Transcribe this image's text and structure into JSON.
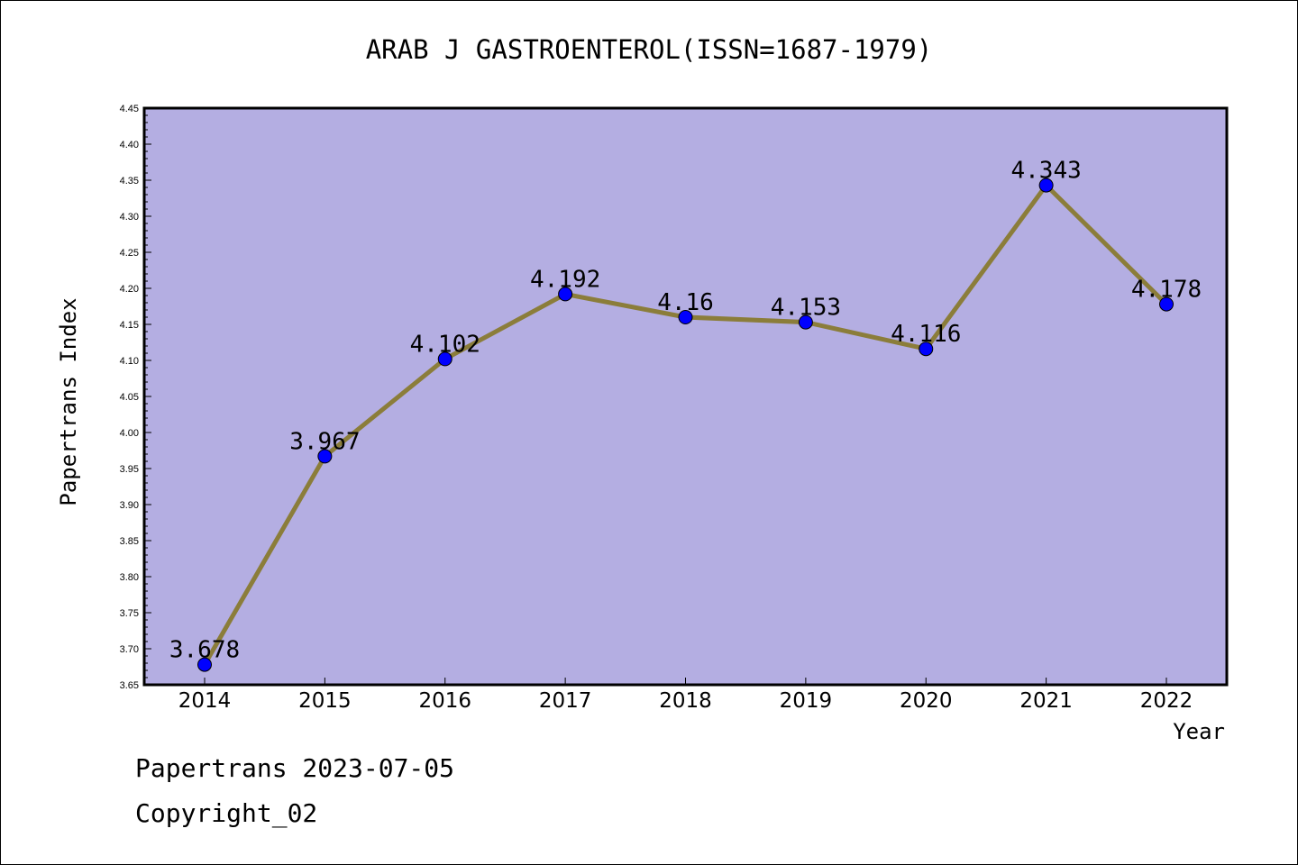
{
  "chart_data": {
    "type": "line",
    "title": "ARAB J GASTROENTEROL(ISSN=1687-1979)",
    "xlabel": "Year",
    "ylabel": "Papertrans Index",
    "categories": [
      "2014",
      "2015",
      "2016",
      "2017",
      "2018",
      "2019",
      "2020",
      "2021",
      "2022"
    ],
    "values": [
      3.678,
      3.967,
      4.102,
      4.192,
      4.16,
      4.153,
      4.116,
      4.343,
      4.178
    ],
    "data_labels": [
      "3.678",
      "3.967",
      "4.102",
      "4.192",
      "4.16",
      "4.153",
      "4.116",
      "4.343",
      "4.178"
    ],
    "ylim": [
      3.65,
      4.45
    ],
    "yticks": [
      "3.65",
      "3.70",
      "3.75",
      "3.80",
      "3.85",
      "3.90",
      "3.95",
      "4.00",
      "4.05",
      "4.10",
      "4.15",
      "4.20",
      "4.25",
      "4.30",
      "4.35",
      "4.40",
      "4.45"
    ],
    "grid": false,
    "colors": {
      "plot_background": "#b4aee2",
      "line": "#8b7d3a",
      "marker": "#0000ff"
    }
  },
  "footer": {
    "line1": "Papertrans 2023-07-05",
    "line2": "Copyright_02"
  }
}
